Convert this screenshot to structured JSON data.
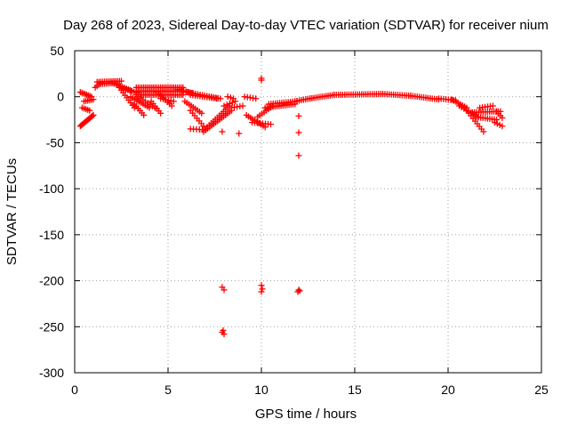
{
  "chart_data": {
    "type": "scatter",
    "title": "Day 268 of 2023, Sidereal Day-to-day VTEC variation (SDTVAR) for receiver nium",
    "xlabel": "GPS time / hours",
    "ylabel": "SDTVAR / TECUs",
    "xlim": [
      0,
      25
    ],
    "ylim": [
      -300,
      50
    ],
    "xticks": [
      0,
      5,
      10,
      15,
      20,
      25
    ],
    "yticks": [
      -300,
      -250,
      -200,
      -150,
      -100,
      -50,
      0,
      50
    ],
    "grid": true,
    "marker": "+",
    "color": "#ff0000",
    "series": [
      {
        "name": "SDTVAR",
        "segments": [
          {
            "x0": 0.3,
            "y0": -32,
            "x1": 1.0,
            "y1": -20,
            "n": 14
          },
          {
            "x0": 0.3,
            "y0": 5,
            "x1": 0.9,
            "y1": 0,
            "n": 8
          },
          {
            "x0": 0.5,
            "y0": -5,
            "x1": 1.0,
            "y1": -3,
            "n": 6
          },
          {
            "x0": 0.4,
            "y0": -12,
            "x1": 0.8,
            "y1": -15,
            "n": 5
          },
          {
            "x0": 1.1,
            "y0": 10,
            "x1": 1.4,
            "y1": 15,
            "n": 4
          },
          {
            "x0": 1.2,
            "y0": 16,
            "x1": 2.5,
            "y1": 17,
            "n": 14
          },
          {
            "x0": 1.4,
            "y0": 14,
            "x1": 2.2,
            "y1": 15,
            "n": 9
          },
          {
            "x0": 2.0,
            "y0": 15,
            "x1": 3.0,
            "y1": 7,
            "n": 10
          },
          {
            "x0": 2.4,
            "y0": 10,
            "x1": 3.4,
            "y1": 4,
            "n": 10
          },
          {
            "x0": 2.5,
            "y0": 7,
            "x1": 3.2,
            "y1": -12,
            "n": 8
          },
          {
            "x0": 3.0,
            "y0": 0,
            "x1": 4.0,
            "y1": -12,
            "n": 10
          },
          {
            "x0": 3.2,
            "y0": -8,
            "x1": 3.7,
            "y1": -20,
            "n": 6
          },
          {
            "x0": 3.3,
            "y0": 10,
            "x1": 5.8,
            "y1": 10,
            "n": 26
          },
          {
            "x0": 3.3,
            "y0": 6,
            "x1": 5.8,
            "y1": 6,
            "n": 26
          },
          {
            "x0": 3.3,
            "y0": 2,
            "x1": 5.8,
            "y1": 2,
            "n": 26
          },
          {
            "x0": 3.4,
            "y0": 0,
            "x1": 4.3,
            "y1": -12,
            "n": 8
          },
          {
            "x0": 4.1,
            "y0": -5,
            "x1": 4.6,
            "y1": -18,
            "n": 6
          },
          {
            "x0": 4.4,
            "y0": 5,
            "x1": 5.2,
            "y1": -10,
            "n": 8
          },
          {
            "x0": 4.6,
            "y0": -2,
            "x1": 5.3,
            "y1": -5,
            "n": 6
          },
          {
            "x0": 5.5,
            "y0": 8,
            "x1": 6.3,
            "y1": 4,
            "n": 8
          },
          {
            "x0": 6.0,
            "y0": 5,
            "x1": 7.8,
            "y1": -2,
            "n": 16
          },
          {
            "x0": 6.2,
            "y0": 2,
            "x1": 7.6,
            "y1": -2,
            "n": 12
          },
          {
            "x0": 5.9,
            "y0": -5,
            "x1": 6.8,
            "y1": -18,
            "n": 9
          },
          {
            "x0": 6.2,
            "y0": -15,
            "x1": 6.9,
            "y1": -32,
            "n": 7
          },
          {
            "x0": 6.2,
            "y0": -35,
            "x1": 7.0,
            "y1": -36,
            "n": 6
          },
          {
            "x0": 6.9,
            "y0": -38,
            "x1": 8.4,
            "y1": -15,
            "n": 15
          },
          {
            "x0": 7.1,
            "y0": -33,
            "x1": 8.3,
            "y1": -10,
            "n": 12
          },
          {
            "x0": 8.0,
            "y0": -10,
            "x1": 8.6,
            "y1": -5,
            "n": 5
          },
          {
            "x0": 8.2,
            "y0": 0,
            "x1": 8.5,
            "y1": -2,
            "n": 3
          },
          {
            "x0": 8.4,
            "y0": -12,
            "x1": 9.0,
            "y1": -10,
            "n": 5
          },
          {
            "x0": 9.1,
            "y0": 0,
            "x1": 9.7,
            "y1": -2,
            "n": 5
          },
          {
            "x0": 9.2,
            "y0": -20,
            "x1": 10.2,
            "y1": -33,
            "n": 10
          },
          {
            "x0": 9.5,
            "y0": -28,
            "x1": 10.5,
            "y1": -30,
            "n": 8
          },
          {
            "x0": 9.8,
            "y0": -22,
            "x1": 10.6,
            "y1": -10,
            "n": 8
          },
          {
            "x0": 10.2,
            "y0": -12,
            "x1": 11.8,
            "y1": -8,
            "n": 16
          },
          {
            "x0": 10.4,
            "y0": -8,
            "x1": 11.9,
            "y1": -5,
            "n": 14
          },
          {
            "x0": 11.8,
            "y0": -5,
            "x1": 12.6,
            "y1": -2,
            "n": 8
          },
          {
            "x0": 12.6,
            "y0": -2,
            "x1": 13.9,
            "y1": 2,
            "n": 13
          },
          {
            "x0": 13.9,
            "y0": 2,
            "x1": 16.5,
            "y1": 3,
            "n": 24
          },
          {
            "x0": 16.5,
            "y0": 3,
            "x1": 18.0,
            "y1": 1,
            "n": 14
          },
          {
            "x0": 18.0,
            "y0": 1,
            "x1": 19.5,
            "y1": -3,
            "n": 14
          },
          {
            "x0": 19.5,
            "y0": -2,
            "x1": 20.4,
            "y1": -4,
            "n": 8
          },
          {
            "x0": 20.2,
            "y0": -3,
            "x1": 21.0,
            "y1": -12,
            "n": 8
          },
          {
            "x0": 20.6,
            "y0": -10,
            "x1": 21.6,
            "y1": -22,
            "n": 9
          },
          {
            "x0": 21.0,
            "y0": -15,
            "x1": 21.9,
            "y1": -38,
            "n": 9
          },
          {
            "x0": 21.3,
            "y0": -17,
            "x1": 22.8,
            "y1": -16,
            "n": 14
          },
          {
            "x0": 21.5,
            "y0": -22,
            "x1": 22.6,
            "y1": -25,
            "n": 10
          },
          {
            "x0": 21.7,
            "y0": -12,
            "x1": 22.4,
            "y1": -10,
            "n": 6
          },
          {
            "x0": 22.6,
            "y0": -16,
            "x1": 22.9,
            "y1": -23,
            "n": 4
          },
          {
            "x0": 22.5,
            "y0": -28,
            "x1": 22.9,
            "y1": -32,
            "n": 4
          }
        ],
        "points": [
          [
            7.9,
            -38
          ],
          [
            8.8,
            -40
          ],
          [
            10.0,
            20
          ],
          [
            10.0,
            18
          ],
          [
            12.0,
            -21
          ],
          [
            12.0,
            -39
          ],
          [
            12.0,
            -64
          ],
          [
            7.9,
            -207
          ],
          [
            8.0,
            -210
          ],
          [
            7.9,
            -256
          ],
          [
            8.0,
            -258
          ],
          [
            7.95,
            -254
          ],
          [
            10.0,
            -205
          ],
          [
            10.05,
            -209
          ],
          [
            10.0,
            -212
          ],
          [
            12.0,
            -210
          ],
          [
            11.95,
            -212
          ],
          [
            12.05,
            -211
          ]
        ]
      }
    ]
  }
}
